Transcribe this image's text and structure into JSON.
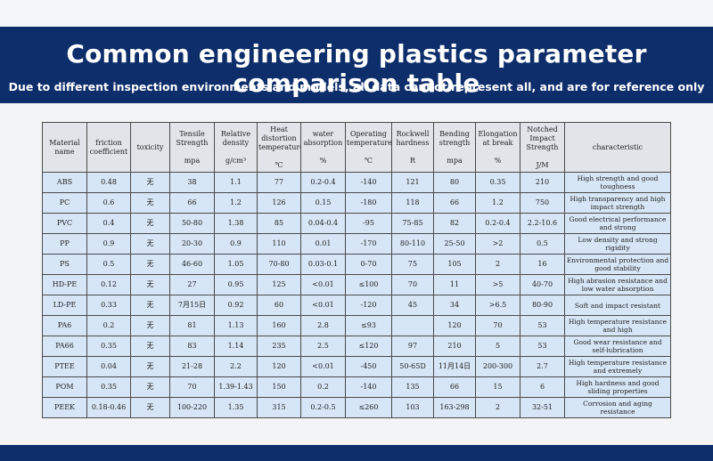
{
  "title": "Common engineering plastics parameter comparison table",
  "subtitle": "Due to different inspection environments and models, all data cannot represent all, and are for reference only",
  "columns": [
    {
      "label": "Material name",
      "unit": ""
    },
    {
      "label": "friction coefficient",
      "unit": ""
    },
    {
      "label": "toxicity",
      "unit": ""
    },
    {
      "label": "Tensile Strength",
      "unit": "mpa"
    },
    {
      "label": "Relative density",
      "unit": "g/cm³"
    },
    {
      "label": "Heat distortion temperature",
      "unit": "℃"
    },
    {
      "label": "water absorption",
      "unit": "%"
    },
    {
      "label": "Operating temperature",
      "unit": "℃"
    },
    {
      "label": "Rockwell hardness",
      "unit": "R"
    },
    {
      "label": "Bending strength",
      "unit": "mpa"
    },
    {
      "label": "Elongation at break",
      "unit": "%"
    },
    {
      "label": "Notched Impact Strength",
      "unit": "J/M"
    },
    {
      "label": "characteristic",
      "unit": ""
    }
  ],
  "rows": [
    [
      "ABS",
      "0.48",
      "无",
      "38",
      "1.1",
      "77",
      "0.2-0.4",
      "-140",
      "121",
      "80",
      "0.35",
      "210",
      "High strength and good toughness"
    ],
    [
      "PC",
      "0.6",
      "无",
      "66",
      "1.2",
      "126",
      "0.15",
      "-180",
      "118",
      "66",
      "1.2",
      "750",
      "High transparency and high impact strength"
    ],
    [
      "PVC",
      "0.4",
      "无",
      "50-80",
      "1.38",
      "85",
      "0.04-0.4",
      "-95",
      "75-85",
      "82",
      "0.2-0.4",
      "2.2-10.6",
      "Good electrical performance and strong"
    ],
    [
      "PP",
      "0.9",
      "无",
      "20-30",
      "0.9",
      "110",
      "0.01",
      "-170",
      "80-110",
      "25-50",
      ">2",
      "0.5",
      "Low density and strong rigidity"
    ],
    [
      "PS",
      "0.5",
      "无",
      "46-60",
      "1.05",
      "70-80",
      "0.03-0.1",
      "0-70",
      "75",
      "105",
      "2",
      "16",
      "Environmental protection and good stability"
    ],
    [
      "HD-PE",
      "0.12",
      "无",
      "27",
      "0.95",
      "125",
      "<0.01",
      "≤100",
      "70",
      "11",
      ">5",
      "40-70",
      "High abrasion resistance and low water absorption"
    ],
    [
      "LD-PE",
      "0.33",
      "无",
      "7月15日",
      "0.92",
      "60",
      "<0.01",
      "-120",
      "45",
      "34",
      ">6.5",
      "80-90",
      "Soft and impact resistant"
    ],
    [
      "PA6",
      "0.2",
      "无",
      "81",
      "1.13",
      "160",
      "2.8",
      "≤93",
      "",
      "120",
      "70",
      "53",
      "High temperature resistance and high"
    ],
    [
      "PA66",
      "0.35",
      "无",
      "83",
      "1.14",
      "235",
      "2.5",
      "≤120",
      "97",
      "210",
      "5",
      "53",
      "Good wear resistance and self-lubrication"
    ],
    [
      "PTEE",
      "0.04",
      "无",
      "21-28",
      "2.2",
      "120",
      "<0.01",
      "-450",
      "50-65D",
      "11月14日",
      "200-300",
      "2.7",
      "High temperature resistance and extremely"
    ],
    [
      "POM",
      "0.35",
      "无",
      "70",
      "1.39-1.43",
      "150",
      "0.2",
      "-140",
      "135",
      "66",
      "15",
      "6",
      "High hardness and good sliding properties"
    ],
    [
      "PEEK",
      "0.18-0.46",
      "无",
      "100-220",
      "1.35",
      "315",
      "0.2-0.5",
      "≤260",
      "103",
      "163-298",
      "2",
      "32-51",
      "Corrosion and aging resistance"
    ]
  ]
}
